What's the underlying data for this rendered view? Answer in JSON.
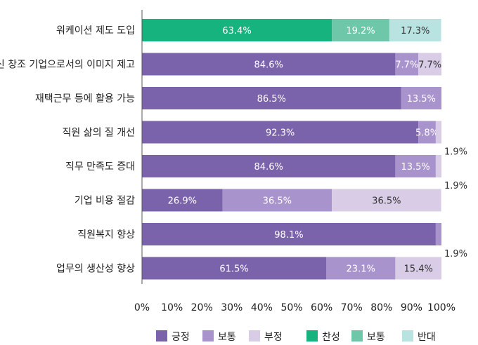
{
  "chart_data": {
    "type": "bar",
    "orientation": "horizontal",
    "stacked": true,
    "title": "",
    "xlabel": "",
    "ylabel": "",
    "xlim": [
      0,
      100
    ],
    "x_ticks": [
      "0%",
      "10%",
      "20%",
      "30%",
      "40%",
      "50%",
      "60%",
      "70%",
      "80%",
      "90%",
      "100%"
    ],
    "categories": [
      "워케이션 제도 도입",
      "혁신 창조 기업으로서의 이미지 제고",
      "재택근무 등에 활용 가능",
      "직원 삶의 질 개선",
      "직무 만족도 증대",
      "기업 비용 절감",
      "직원복지 향상",
      "업무의 생산성 향상"
    ],
    "rows": [
      {
        "segments": [
          {
            "series": "찬성",
            "value": 63.4,
            "label": "63.4%"
          },
          {
            "series": "보통(찬반)",
            "value": 19.2,
            "label": "19.2%"
          },
          {
            "series": "반대",
            "value": 17.3,
            "label": "17.3%"
          }
        ]
      },
      {
        "segments": [
          {
            "series": "긍정",
            "value": 84.6,
            "label": "84.6%"
          },
          {
            "series": "보통",
            "value": 7.7,
            "label": "7.7%"
          },
          {
            "series": "부정",
            "value": 7.7,
            "label": "7.7%"
          }
        ]
      },
      {
        "segments": [
          {
            "series": "긍정",
            "value": 86.5,
            "label": "86.5%"
          },
          {
            "series": "보통",
            "value": 13.5,
            "label": "13.5%"
          },
          {
            "series": "부정",
            "value": 0,
            "label": ""
          }
        ]
      },
      {
        "segments": [
          {
            "series": "긍정",
            "value": 92.3,
            "label": "92.3%"
          },
          {
            "series": "보통",
            "value": 5.8,
            "label": "5.8%"
          },
          {
            "series": "부정",
            "value": 1.9,
            "label": "1.9%",
            "outside": true
          }
        ]
      },
      {
        "segments": [
          {
            "series": "긍정",
            "value": 84.6,
            "label": "84.6%"
          },
          {
            "series": "보통",
            "value": 13.5,
            "label": "13.5%"
          },
          {
            "series": "부정",
            "value": 1.9,
            "label": "1.9%",
            "outside": true
          }
        ]
      },
      {
        "segments": [
          {
            "series": "긍정",
            "value": 26.9,
            "label": "26.9%"
          },
          {
            "series": "보통",
            "value": 36.5,
            "label": "36.5%"
          },
          {
            "series": "부정",
            "value": 36.5,
            "label": "36.5%"
          }
        ]
      },
      {
        "segments": [
          {
            "series": "긍정",
            "value": 98.1,
            "label": "98.1%"
          },
          {
            "series": "보통",
            "value": 1.9,
            "label": "1.9%",
            "outside": true
          },
          {
            "series": "부정",
            "value": 0,
            "label": ""
          }
        ]
      },
      {
        "segments": [
          {
            "series": "긍정",
            "value": 61.5,
            "label": "61.5%"
          },
          {
            "series": "보통",
            "value": 23.1,
            "label": "23.1%"
          },
          {
            "series": "부정",
            "value": 15.4,
            "label": "15.4%"
          }
        ]
      }
    ],
    "series_colors": {
      "긍정": "#7b63ac",
      "보통": "#a993cc",
      "부정": "#d8cce6",
      "찬성": "#17b37f",
      "보통(찬반)": "#6ec7a8",
      "반대": "#b9e3e1"
    },
    "dark_label_series": [
      "부정",
      "반대"
    ],
    "legend": [
      {
        "label": "긍정",
        "color": "#7b63ac"
      },
      {
        "label": "보통",
        "color": "#a993cc"
      },
      {
        "label": "부정",
        "color": "#d8cce6"
      },
      {
        "label": "찬성",
        "color": "#17b37f"
      },
      {
        "label": "보통",
        "color": "#6ec7a8"
      },
      {
        "label": "반대",
        "color": "#b9e3e1"
      }
    ],
    "legend_position": "bottom",
    "grid": false
  }
}
